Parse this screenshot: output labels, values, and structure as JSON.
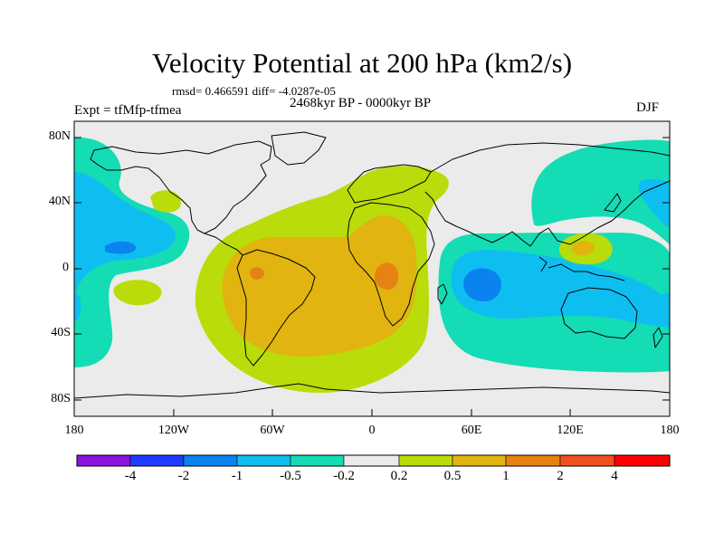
{
  "title": "Velocity Potential at 200 hPa (km2/s)",
  "stats": "rmsd= 0.466591 diff= -4.0287e-05",
  "experiment": "Expt = tfMfp-tfmea",
  "period": "2468kyr BP - 0000kyr BP",
  "season": "DJF",
  "map": {
    "projection": "cylindrical equidistant",
    "lat_range": [
      -90,
      90
    ],
    "lon_range": [
      -180,
      180
    ],
    "lat_ticks": [
      "80N",
      "40N",
      "0",
      "40S",
      "80S"
    ],
    "lon_ticks": [
      "180",
      "120W",
      "60W",
      "0",
      "60E",
      "120E",
      "180"
    ]
  },
  "colorbar": {
    "colors": [
      "#8c14dc",
      "#1e3cff",
      "#0a82f0",
      "#0fbef0",
      "#14dcb4",
      "#ebebeb",
      "#b9dc0a",
      "#e1b40f",
      "#e68214",
      "#f0501e",
      "#ff0000"
    ],
    "labels": [
      "-4",
      "-2",
      "-1",
      "-0.5",
      "-0.2",
      "0.2",
      "0.5",
      "1",
      "2",
      "4"
    ]
  },
  "colors": {
    "background_field": "#ebebeb",
    "coastline": "#000000"
  }
}
